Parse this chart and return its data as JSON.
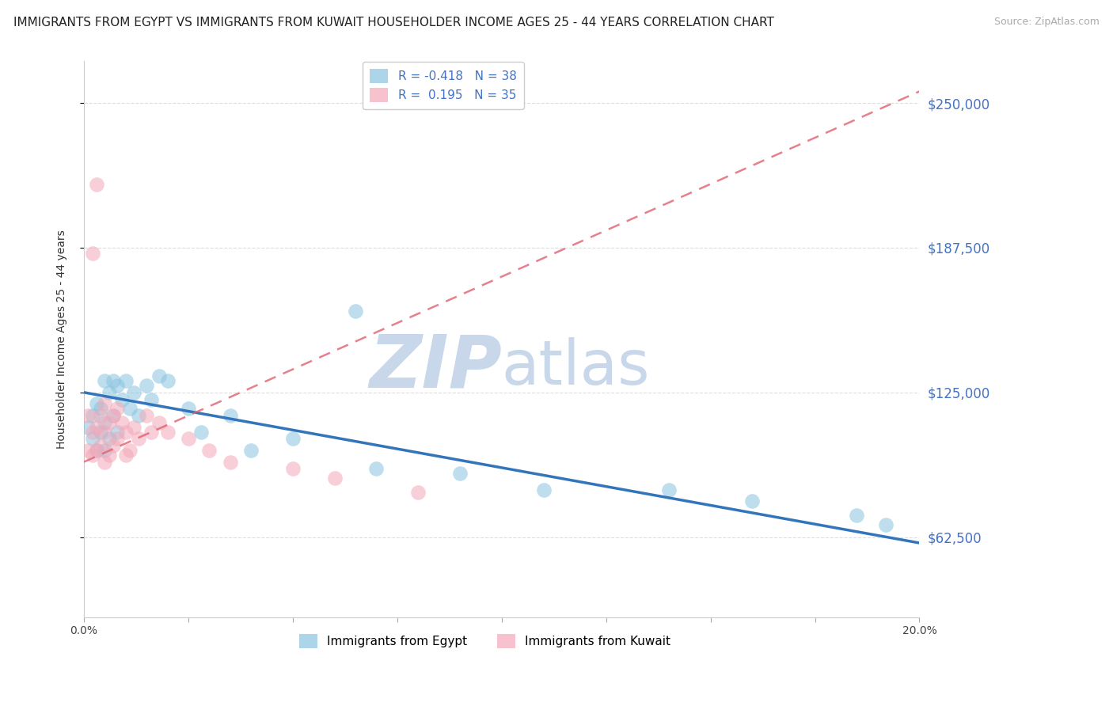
{
  "title": "IMMIGRANTS FROM EGYPT VS IMMIGRANTS FROM KUWAIT HOUSEHOLDER INCOME AGES 25 - 44 YEARS CORRELATION CHART",
  "source": "Source: ZipAtlas.com",
  "ylabel": "Householder Income Ages 25 - 44 years",
  "ytick_labels": [
    "$250,000",
    "$187,500",
    "$125,000",
    "$62,500"
  ],
  "ytick_values": [
    250000,
    187500,
    125000,
    62500
  ],
  "xlim": [
    0.0,
    0.2
  ],
  "ylim": [
    28000,
    268000
  ],
  "egypt_R": -0.418,
  "egypt_N": 38,
  "kuwait_R": 0.195,
  "kuwait_N": 35,
  "egypt_color": "#89c4e1",
  "kuwait_color": "#f4a8b8",
  "egypt_line_color": "#3375bb",
  "kuwait_line_color": "#e06070",
  "egypt_line_x": [
    0.0,
    0.2
  ],
  "egypt_line_y": [
    125000,
    60000
  ],
  "kuwait_line_x": [
    0.0,
    0.2
  ],
  "kuwait_line_y": [
    95000,
    255000
  ],
  "watermark_zip": "ZIP",
  "watermark_atlas": "atlas",
  "watermark_color": "#c8d8ea",
  "background_color": "#ffffff",
  "grid_color": "#dddddd",
  "title_fontsize": 11,
  "axis_label_fontsize": 10,
  "tick_fontsize": 10,
  "legend_fontsize": 11,
  "egypt_legend_label": "Immigrants from Egypt",
  "kuwait_legend_label": "Immigrants from Kuwait",
  "egypt_x": [
    0.001,
    0.002,
    0.002,
    0.003,
    0.003,
    0.004,
    0.004,
    0.005,
    0.005,
    0.005,
    0.006,
    0.006,
    0.007,
    0.007,
    0.008,
    0.008,
    0.009,
    0.01,
    0.011,
    0.012,
    0.013,
    0.015,
    0.016,
    0.018,
    0.02,
    0.025,
    0.028,
    0.035,
    0.04,
    0.05,
    0.065,
    0.07,
    0.09,
    0.11,
    0.14,
    0.16,
    0.185,
    0.192
  ],
  "egypt_y": [
    110000,
    115000,
    105000,
    120000,
    100000,
    118000,
    108000,
    130000,
    112000,
    100000,
    125000,
    105000,
    130000,
    115000,
    128000,
    108000,
    122000,
    130000,
    118000,
    125000,
    115000,
    128000,
    122000,
    132000,
    130000,
    118000,
    108000,
    115000,
    100000,
    105000,
    160000,
    92000,
    90000,
    83000,
    83000,
    78000,
    72000,
    68000
  ],
  "kuwait_x": [
    0.001,
    0.001,
    0.002,
    0.002,
    0.003,
    0.003,
    0.004,
    0.004,
    0.005,
    0.005,
    0.005,
    0.006,
    0.006,
    0.007,
    0.007,
    0.008,
    0.008,
    0.009,
    0.01,
    0.01,
    0.011,
    0.012,
    0.013,
    0.015,
    0.016,
    0.018,
    0.02,
    0.025,
    0.03,
    0.035,
    0.05,
    0.06,
    0.08,
    0.002,
    0.003
  ],
  "kuwait_y": [
    115000,
    100000,
    108000,
    98000,
    110000,
    100000,
    115000,
    102000,
    120000,
    108000,
    95000,
    112000,
    98000,
    115000,
    102000,
    118000,
    105000,
    112000,
    108000,
    98000,
    100000,
    110000,
    105000,
    115000,
    108000,
    112000,
    108000,
    105000,
    100000,
    95000,
    92000,
    88000,
    82000,
    185000,
    215000
  ]
}
